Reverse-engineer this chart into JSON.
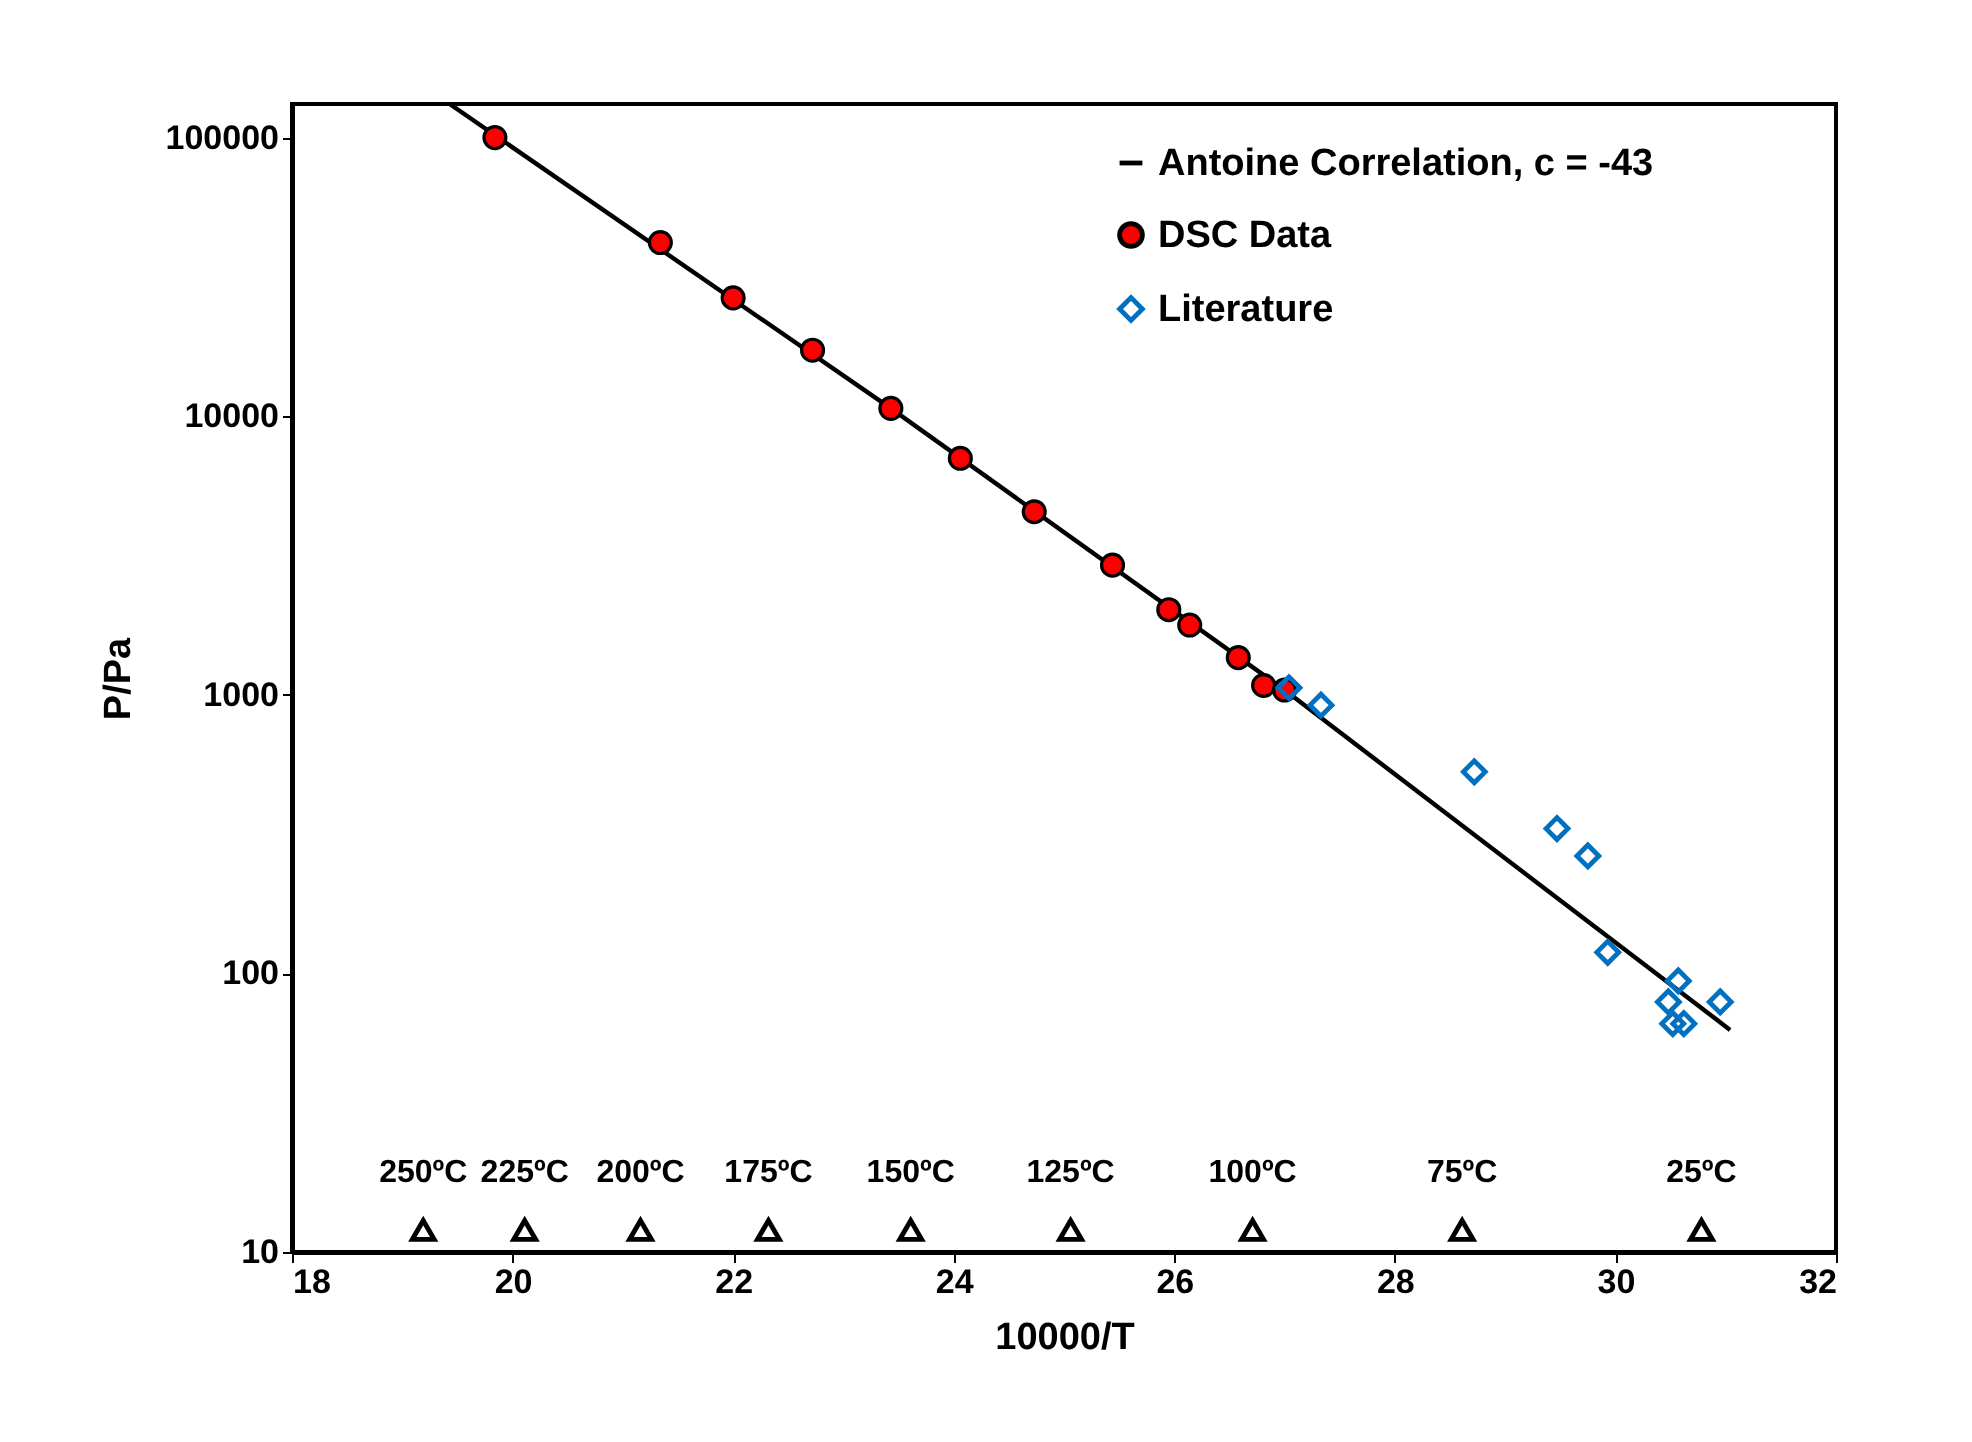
{
  "chart_data": {
    "type": "scatter",
    "xlabel": "10000/T",
    "ylabel": "P/Pa",
    "xlim": [
      18,
      32
    ],
    "xticks": [
      18,
      20,
      22,
      24,
      26,
      28,
      30,
      32
    ],
    "ylim": [
      10,
      132000
    ],
    "yticks": [
      10,
      100,
      1000,
      10000,
      100000
    ],
    "log": "y",
    "legend": "top right",
    "series": [
      {
        "name": "Antoine Correlation, c = -43",
        "type": "line",
        "color": "#000000",
        "marker": "none",
        "x": [
          19.43,
          23.43,
          27.0,
          31.04
        ],
        "values": [
          132000,
          10670,
          1040,
          62.7
        ]
      },
      {
        "name": "DSC Data",
        "color": "#ff0000",
        "marker": "circle",
        "x": [
          19.84,
          21.34,
          22.0,
          22.72,
          23.43,
          24.06,
          24.73,
          25.44,
          25.95,
          26.14,
          26.58,
          26.81,
          27.0
        ],
        "values": [
          100000,
          42000,
          26600,
          17250,
          10670,
          7060,
          4540,
          2920,
          2020,
          1780,
          1360,
          1080,
          1040
        ]
      },
      {
        "name": "Literature",
        "color": "#0070c0",
        "marker": "diamond",
        "x": [
          27.04,
          27.33,
          28.72,
          29.47,
          29.75,
          29.93,
          30.57,
          30.48,
          30.95,
          30.52,
          30.62
        ],
        "values": [
          1060,
          918,
          529,
          331,
          264,
          119,
          94,
          79,
          79,
          66,
          66
        ]
      },
      {
        "color": "#000000",
        "marker": "triangle",
        "x": [
          19.19,
          20.11,
          21.16,
          22.32,
          23.61,
          25.06,
          26.71,
          28.61,
          30.78
        ],
        "values": [
          12,
          12,
          12,
          12,
          12,
          12,
          12,
          12,
          12
        ]
      }
    ],
    "annotations": [
      {
        "text": "250ºC",
        "x": 19.19,
        "y": 12
      },
      {
        "text": "225ºC",
        "x": 20.11,
        "y": 12
      },
      {
        "text": "200ºC",
        "x": 21.16,
        "y": 12
      },
      {
        "text": "175ºC",
        "x": 22.32,
        "y": 12
      },
      {
        "text": "150ºC",
        "x": 23.61,
        "y": 12
      },
      {
        "text": "125ºC",
        "x": 25.06,
        "y": 12
      },
      {
        "text": "100ºC",
        "x": 26.71,
        "y": 12
      },
      {
        "text": "75ºC",
        "x": 28.61,
        "y": 12
      },
      {
        "text": "25ºC",
        "x": 30.78,
        "y": 12
      }
    ]
  }
}
